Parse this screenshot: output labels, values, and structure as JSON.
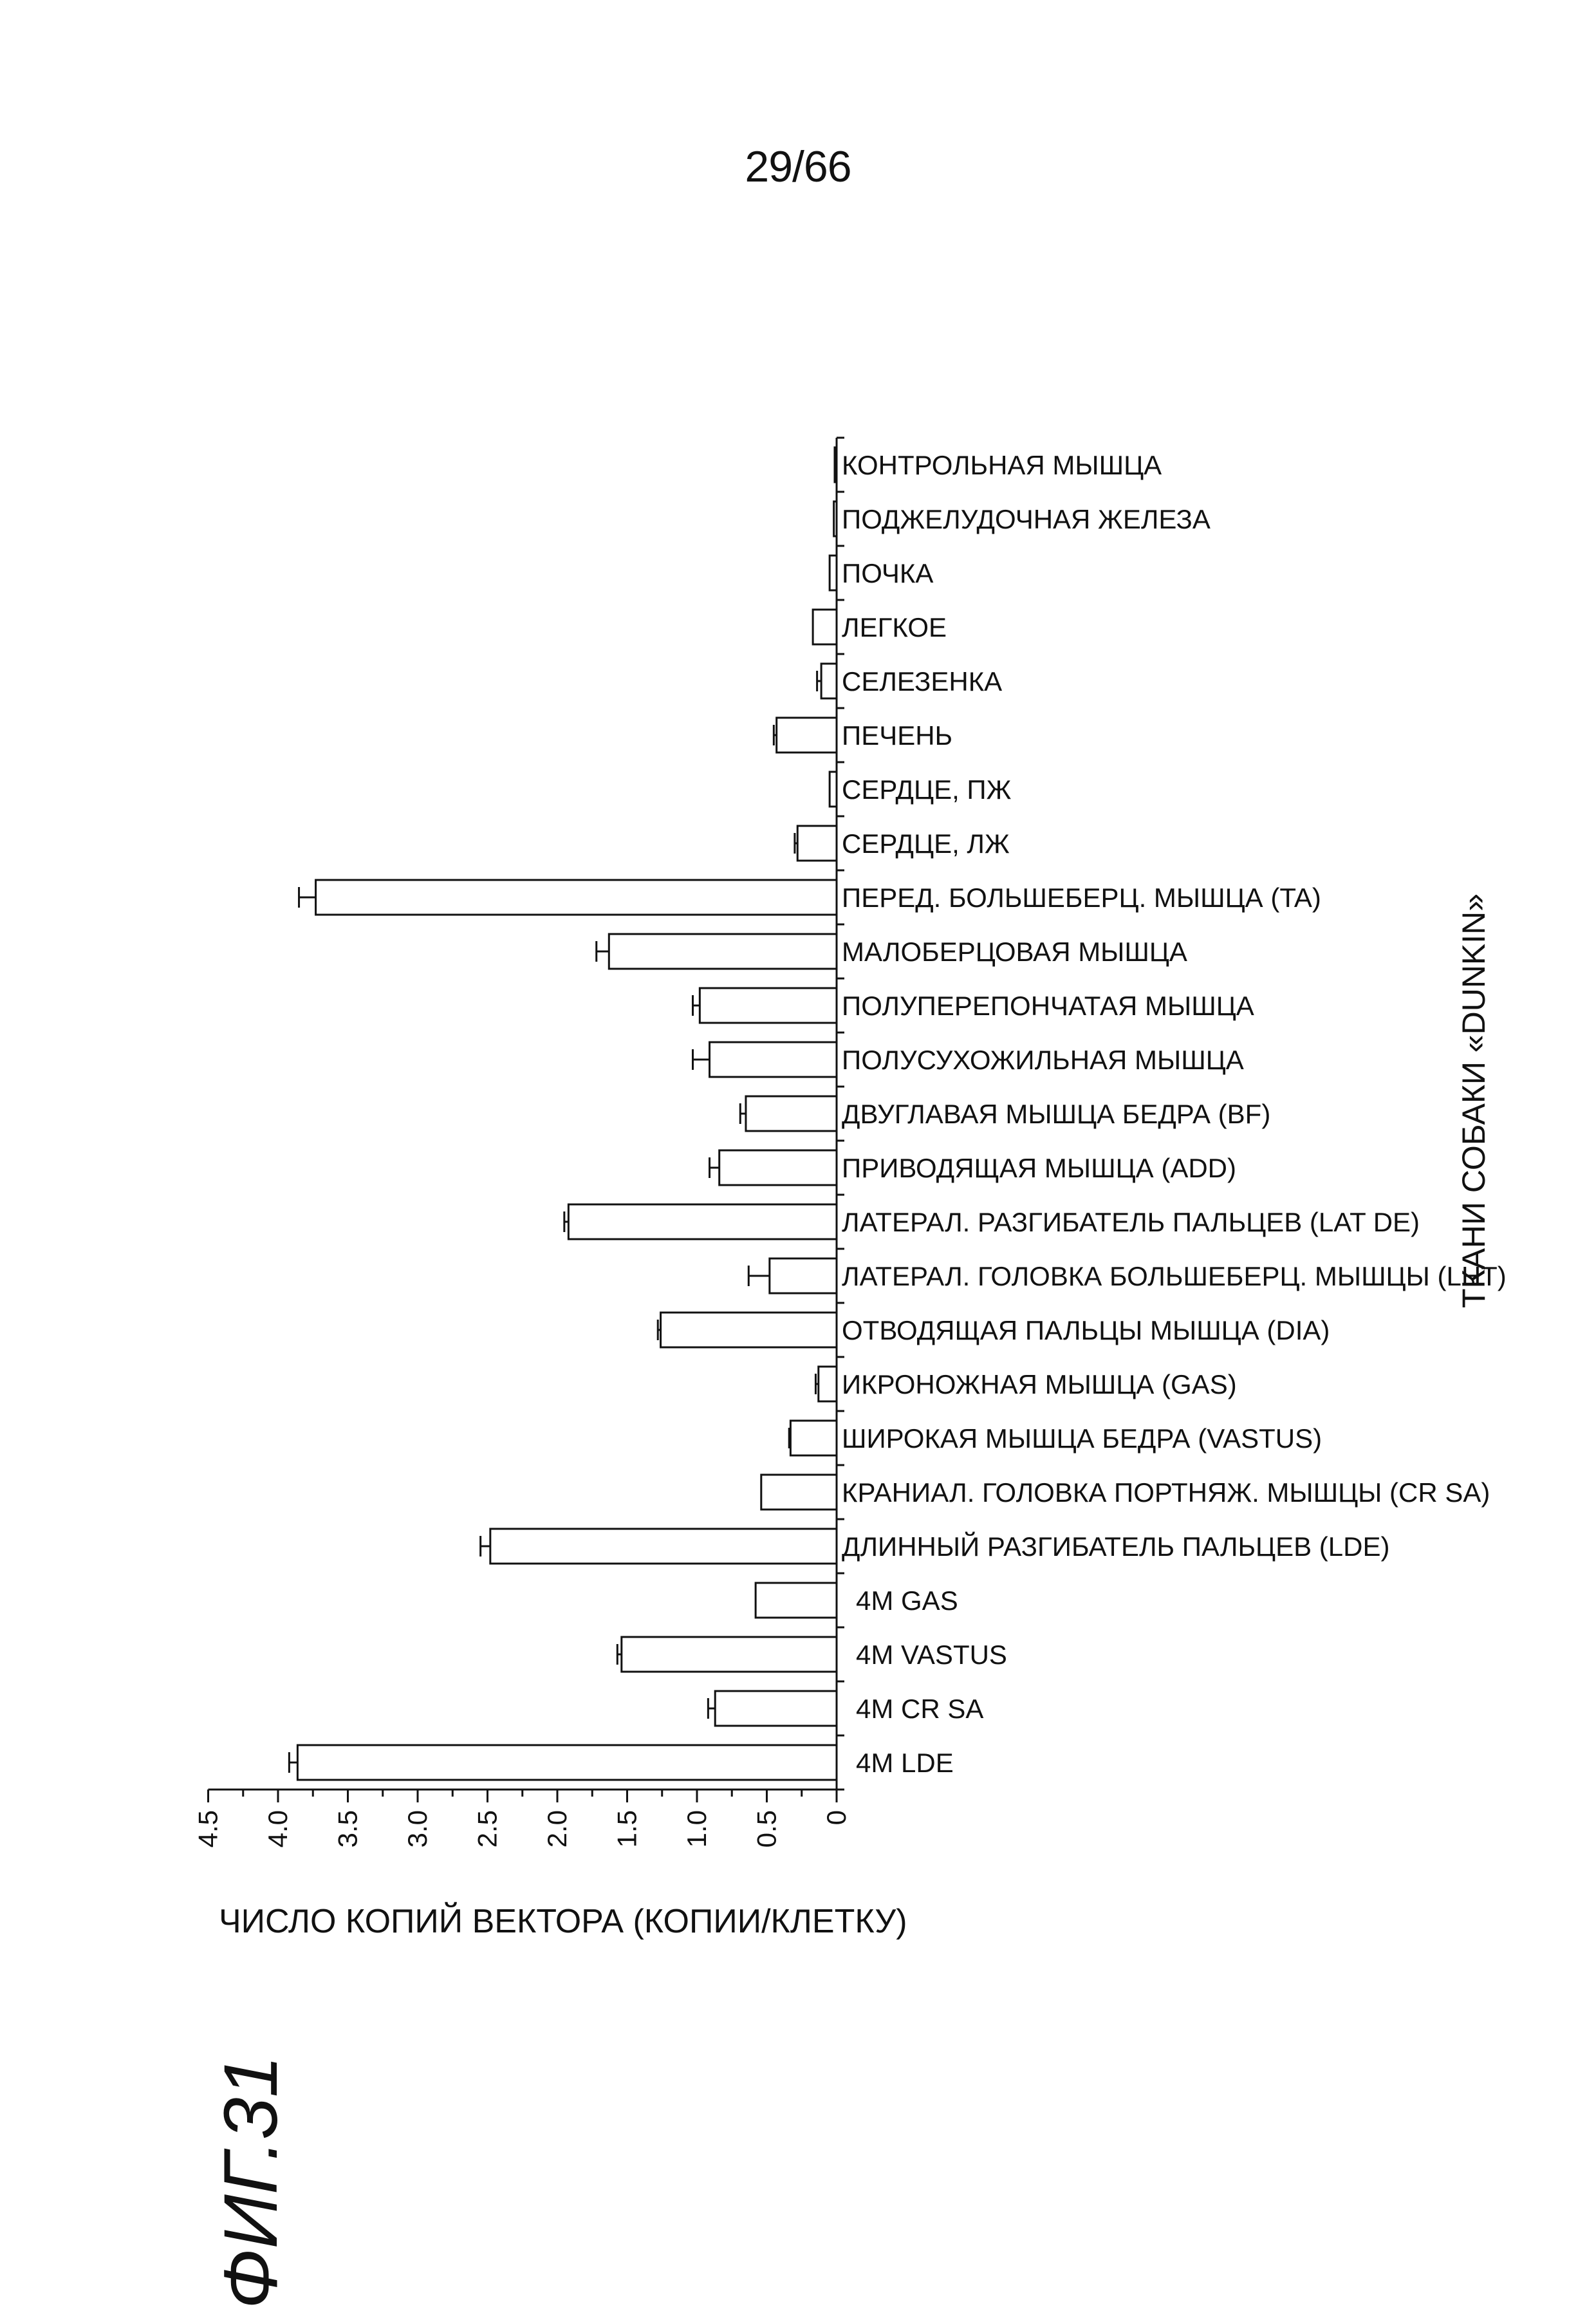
{
  "page": {
    "page_number": "29/66",
    "figure_label": "ФИГ.31"
  },
  "chart_data": {
    "type": "bar",
    "orientation": "horizontal",
    "xlabel": "ЧИСЛО КОПИЙ ВЕКТОРА (КОПИИ/КЛЕТКУ)",
    "ylabel": "ТКАНИ СОБАКИ «DUNKIN»",
    "xlim": [
      0,
      4.5
    ],
    "x_direction": "reversed",
    "xticks": [
      "0",
      "0.5",
      "1.0",
      "1.5",
      "2.0",
      "2.5",
      "3.0",
      "3.5",
      "4.0",
      "4.5"
    ],
    "grid": false,
    "error_bars": true,
    "categories": [
      "КОНТРОЛЬНАЯ МЫШЦА",
      "ПОДЖЕЛУДОЧНАЯ ЖЕЛЕЗА",
      "ПОЧКА",
      "ЛЕГКОЕ",
      "СЕЛЕЗЕНКА",
      "ПЕЧЕНЬ",
      "СЕРДЦЕ, ПЖ",
      "СЕРДЦЕ, ЛЖ",
      "ПЕРЕД. БОЛЬШЕБЕРЦ. МЫШЦА (TA)",
      "МАЛОБЕРЦОВАЯ МЫШЦА",
      "ПОЛУПЕРЕПОНЧАТАЯ МЫШЦА",
      "ПОЛУСУХОЖИЛЬНАЯ МЫШЦА",
      "ДВУГЛАВАЯ МЫШЦА БЕДРА (BF)",
      "ПРИВОДЯЩАЯ МЫШЦА (ADD)",
      "ЛАТЕРАЛ. РАЗГИБАТЕЛЬ ПАЛЬЦЕВ (LAT DE)",
      "ЛАТЕРАЛ. ГОЛОВКА БОЛЬШЕБЕРЦ. МЫШЦЫ (LHT)",
      "ОТВОДЯЩАЯ ПАЛЬЦЫ МЫШЦА (DIA)",
      "ИКРОНОЖНАЯ МЫШЦА (GAS)",
      "ШИРОКАЯ МЫШЦА БЕДРА (VASTUS)",
      "КРАНИАЛ. ГОЛОВКА ПОРТНЯЖ. МЫШЦЫ (CR SA)",
      "ДЛИННЫЙ РАЗГИБАТЕЛЬ ПАЛЬЦЕВ (LDE)",
      "4M GAS",
      "4M VASTUS",
      "4M CR SA",
      "4M LDE"
    ],
    "values": [
      0.01,
      0.02,
      0.05,
      0.17,
      0.11,
      0.43,
      0.05,
      0.28,
      3.73,
      1.63,
      0.98,
      0.91,
      0.65,
      0.84,
      1.92,
      0.48,
      1.26,
      0.13,
      0.33,
      0.54,
      2.48,
      0.58,
      1.54,
      0.87,
      3.86
    ],
    "errors": [
      0.0,
      0.0,
      0.0,
      0.0,
      0.03,
      0.02,
      0.0,
      0.02,
      0.12,
      0.09,
      0.05,
      0.12,
      0.04,
      0.07,
      0.03,
      0.15,
      0.02,
      0.02,
      0.01,
      0.0,
      0.07,
      0.0,
      0.03,
      0.05,
      0.06
    ]
  }
}
